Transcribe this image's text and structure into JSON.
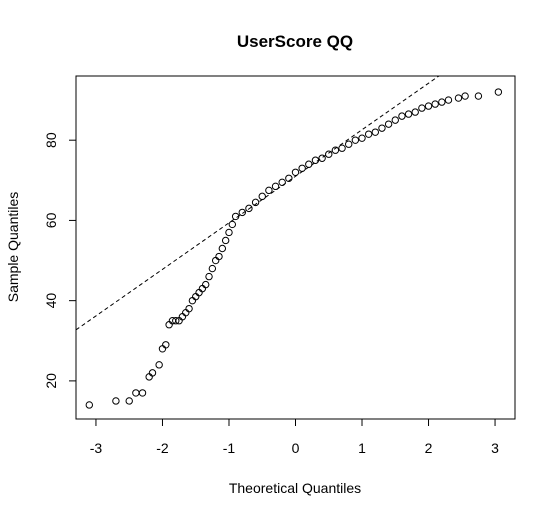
{
  "chart_data": {
    "type": "scatter",
    "title": "UserScore QQ",
    "xlabel": "Theoretical Quantiles",
    "ylabel": "Sample Quantiles",
    "xlim": [
      -3.3,
      3.3
    ],
    "ylim": [
      10.5,
      96
    ],
    "x_ticks": [
      -3,
      -2,
      -1,
      0,
      1,
      2,
      3
    ],
    "x_tick_labels": [
      "-3",
      "-2",
      "-1",
      "0",
      "1",
      "2",
      "3"
    ],
    "y_ticks": [
      20,
      40,
      60,
      80
    ],
    "y_tick_labels": [
      "20",
      "40",
      "60",
      "80"
    ],
    "grid": false,
    "reference_line": {
      "slope": 11.6,
      "intercept": 71,
      "style": "dashed"
    },
    "points": [
      [
        -3.1,
        14
      ],
      [
        -2.7,
        15
      ],
      [
        -2.5,
        15
      ],
      [
        -2.4,
        17
      ],
      [
        -2.3,
        17
      ],
      [
        -2.2,
        21
      ],
      [
        -2.15,
        22
      ],
      [
        -2.05,
        24
      ],
      [
        -2.0,
        28
      ],
      [
        -1.95,
        29
      ],
      [
        -1.9,
        34
      ],
      [
        -1.85,
        35
      ],
      [
        -1.8,
        35
      ],
      [
        -1.75,
        35
      ],
      [
        -1.7,
        36
      ],
      [
        -1.65,
        37
      ],
      [
        -1.6,
        38
      ],
      [
        -1.55,
        40
      ],
      [
        -1.5,
        41
      ],
      [
        -1.45,
        42
      ],
      [
        -1.4,
        43
      ],
      [
        -1.35,
        44
      ],
      [
        -1.3,
        46
      ],
      [
        -1.25,
        48
      ],
      [
        -1.2,
        50
      ],
      [
        -1.15,
        51
      ],
      [
        -1.1,
        53
      ],
      [
        -1.05,
        55
      ],
      [
        -1.0,
        57
      ],
      [
        -0.95,
        59
      ],
      [
        -0.9,
        61
      ],
      [
        -0.8,
        62
      ],
      [
        -0.7,
        63
      ],
      [
        -0.6,
        64.5
      ],
      [
        -0.5,
        66
      ],
      [
        -0.4,
        67.5
      ],
      [
        -0.3,
        68.5
      ],
      [
        -0.2,
        69.5
      ],
      [
        -0.1,
        70.5
      ],
      [
        0.0,
        72
      ],
      [
        0.1,
        73
      ],
      [
        0.2,
        74
      ],
      [
        0.3,
        75
      ],
      [
        0.4,
        75.5
      ],
      [
        0.5,
        76.5
      ],
      [
        0.6,
        77.5
      ],
      [
        0.7,
        78
      ],
      [
        0.8,
        79
      ],
      [
        0.9,
        80
      ],
      [
        1.0,
        80.5
      ],
      [
        1.1,
        81.5
      ],
      [
        1.2,
        82
      ],
      [
        1.3,
        83
      ],
      [
        1.4,
        84
      ],
      [
        1.5,
        85
      ],
      [
        1.6,
        86
      ],
      [
        1.7,
        86.5
      ],
      [
        1.8,
        87
      ],
      [
        1.9,
        88
      ],
      [
        2.0,
        88.5
      ],
      [
        2.1,
        89
      ],
      [
        2.2,
        89.5
      ],
      [
        2.3,
        90
      ],
      [
        2.45,
        90.5
      ],
      [
        2.55,
        91
      ],
      [
        2.75,
        91
      ],
      [
        3.05,
        92
      ]
    ]
  }
}
